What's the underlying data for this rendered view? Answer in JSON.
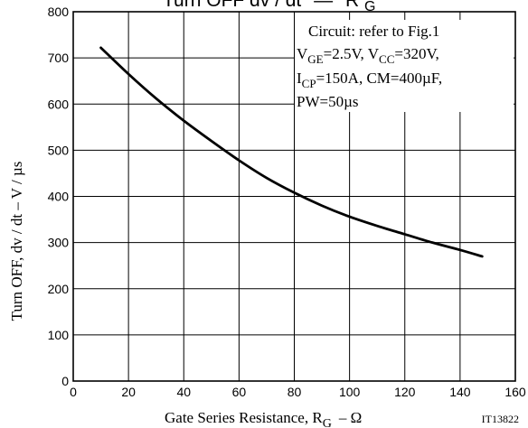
{
  "chart_data": {
    "type": "line",
    "title_main": "Turn OFF dv / dt",
    "title_dash": "—",
    "title_var": "R",
    "title_sub": "G",
    "xlabel_main": "Gate Series Resistance, R",
    "xlabel_sub": "G",
    "xlabel_unit": "– Ω",
    "ylabel": "Turn OFF, dv / dt  –  V / µs",
    "xlim": [
      0,
      160
    ],
    "ylim": [
      0,
      800
    ],
    "x_ticks": [
      0,
      20,
      40,
      60,
      80,
      100,
      120,
      140,
      160
    ],
    "y_ticks": [
      0,
      100,
      200,
      300,
      400,
      500,
      600,
      700,
      800
    ],
    "grid": true,
    "annotation": {
      "line1": "Circuit: refer to Fig.1",
      "line2": {
        "a": "V",
        "a_sub": "GE",
        "b": "=2.5V, V",
        "b_sub": "CC",
        "c": "=320V,"
      },
      "line3": {
        "a": "I",
        "a_sub": "CP",
        "b": "=150A, CM=400µF,"
      },
      "line4": "PW=50µs"
    },
    "code": "IT13822",
    "series": [
      {
        "x": [
          10,
          20,
          30,
          40,
          50,
          60,
          70,
          80,
          90,
          100,
          110,
          120,
          130,
          140,
          148
        ],
        "values": [
          722,
          665,
          612,
          564,
          520,
          478,
          440,
          408,
          380,
          356,
          336,
          318,
          300,
          284,
          270
        ]
      }
    ]
  }
}
